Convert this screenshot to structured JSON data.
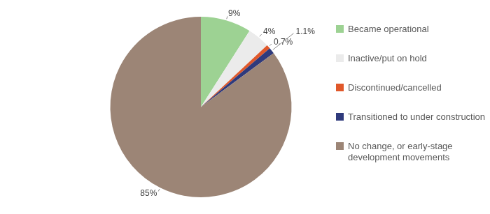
{
  "chart_data": {
    "type": "pie",
    "categories": [
      "Became operational",
      "Inactive/put on hold",
      "Discontinued/cancelled",
      "Transitioned to under construction",
      "No change, or early-stage development movements"
    ],
    "values": [
      9,
      4,
      0.7,
      1.1,
      85
    ],
    "value_labels": [
      "9%",
      "4%",
      "0.7%",
      "1.1%",
      "85%"
    ],
    "colors": [
      "#9dd293",
      "#ebebeb",
      "#e0582a",
      "#2f3a7c",
      "#9c8576"
    ],
    "data_labels": true,
    "legend": "right"
  }
}
